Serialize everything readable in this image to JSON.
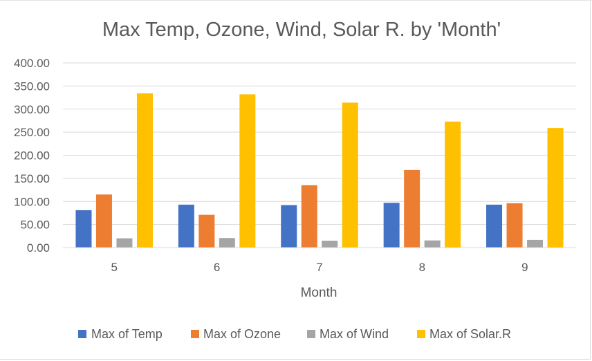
{
  "chart_data": {
    "type": "bar",
    "title": "Max Temp, Ozone, Wind, Solar R. by 'Month'",
    "xlabel": "Month",
    "ylabel": "",
    "categories": [
      "5",
      "6",
      "7",
      "8",
      "9"
    ],
    "ylim": [
      0,
      400
    ],
    "ytick_labels": [
      "0.00",
      "50.00",
      "100.00",
      "150.00",
      "200.00",
      "250.00",
      "300.00",
      "350.00",
      "400.00"
    ],
    "ytick_values": [
      0,
      50,
      100,
      150,
      200,
      250,
      300,
      350,
      400
    ],
    "grid": true,
    "legend_position": "bottom",
    "series": [
      {
        "name": "Max of Temp",
        "color": "#4472C4",
        "values": [
          81,
          93,
          92,
          97,
          93
        ]
      },
      {
        "name": "Max of Ozone",
        "color": "#ED7D31",
        "values": [
          115,
          71,
          135,
          168,
          96
        ]
      },
      {
        "name": "Max of Wind",
        "color": "#A5A5A5",
        "values": [
          20.1,
          20.7,
          14.9,
          15.5,
          16.6
        ]
      },
      {
        "name": "Max of Solar.R",
        "color": "#FFC000",
        "values": [
          334,
          332,
          314,
          273,
          259
        ]
      }
    ]
  }
}
